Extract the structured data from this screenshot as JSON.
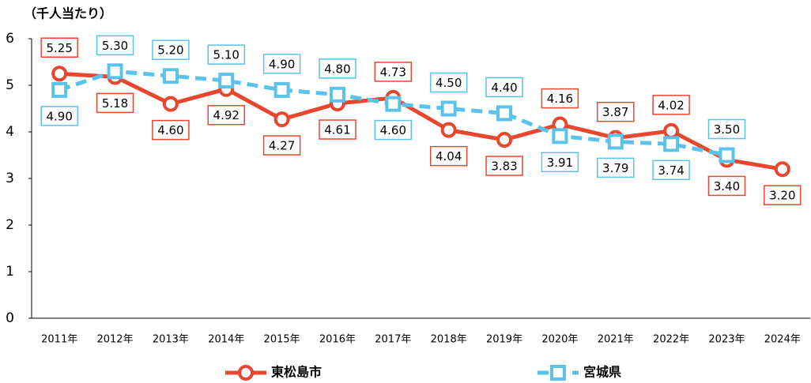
{
  "chart_data": {
    "type": "line",
    "y_axis_label": "（千人当たり）",
    "categories": [
      "2011年",
      "2012年",
      "2013年",
      "2014年",
      "2015年",
      "2016年",
      "2017年",
      "2018年",
      "2019年",
      "2020年",
      "2021年",
      "2022年",
      "2023年",
      "2024年"
    ],
    "series": [
      {
        "name": "東松島市",
        "color": "#e8462d",
        "marker": "circle",
        "dashed": false,
        "values": [
          5.25,
          5.18,
          4.6,
          4.92,
          4.27,
          4.61,
          4.73,
          4.04,
          3.83,
          4.16,
          3.87,
          4.02,
          3.4,
          3.2
        ],
        "value_labels": [
          "5.25",
          "5.18",
          "4.60",
          "4.92",
          "4.27",
          "4.61",
          "4.73",
          "4.04",
          "3.83",
          "4.16",
          "3.87",
          "4.02",
          "3.40",
          "3.20"
        ]
      },
      {
        "name": "宮城県",
        "color": "#5bc3ea",
        "marker": "square",
        "dashed": true,
        "values": [
          4.9,
          5.3,
          5.2,
          5.1,
          4.9,
          4.8,
          4.6,
          4.5,
          4.4,
          3.91,
          3.79,
          3.74,
          3.5,
          null
        ],
        "value_labels": [
          "4.90",
          "5.30",
          "5.20",
          "5.10",
          "4.90",
          "4.80",
          "4.60",
          "4.50",
          "4.40",
          "3.91",
          "3.79",
          "3.74",
          "3.50",
          null
        ]
      }
    ],
    "ylim": [
      0,
      6
    ],
    "yticks": [
      0,
      1,
      2,
      3,
      4,
      5,
      6
    ],
    "grid": false,
    "legend": "bottom"
  }
}
